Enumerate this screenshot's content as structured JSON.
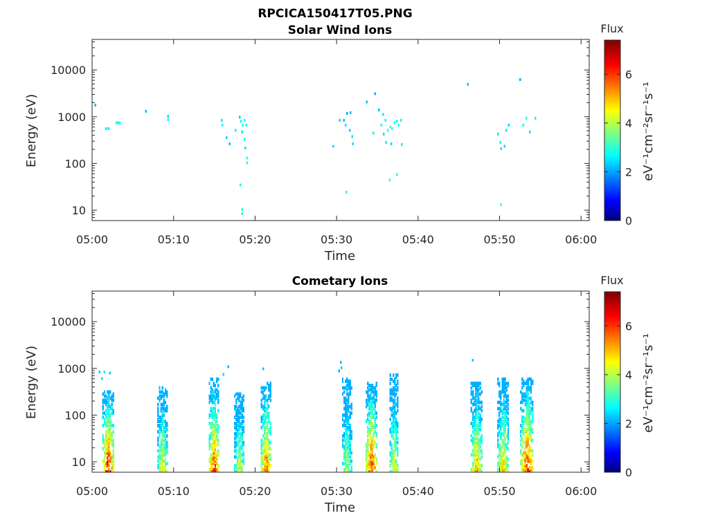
{
  "figure_title": "RPCICA150417T05.PNG",
  "chart_data": [
    {
      "type": "heatmap",
      "title": "Solar Wind Ions",
      "xlabel": "Time",
      "ylabel": "Energy (eV)",
      "y_scale": "log",
      "x_ticks": [
        "05:00",
        "05:10",
        "05:20",
        "05:30",
        "05:40",
        "05:50",
        "06:00"
      ],
      "x_range_minutes": [
        0,
        61
      ],
      "y_ticks": [
        "10",
        "100",
        "1000",
        "10000"
      ],
      "y_range": [
        6,
        45000
      ],
      "colorbar": {
        "label": "Flux",
        "units": "eV⁻¹cm⁻²sr⁻¹s⁻¹",
        "ticks": [
          "0",
          "2",
          "4",
          "6"
        ],
        "range": [
          0,
          7.4
        ],
        "colormap": "jet"
      },
      "points": [
        [
          0.3,
          1900,
          2.2
        ],
        [
          1.6,
          600,
          2.6
        ],
        [
          1.9,
          600,
          2.6
        ],
        [
          2.9,
          800,
          2.9
        ],
        [
          3.1,
          800,
          3.0
        ],
        [
          3.3,
          780,
          2.8
        ],
        [
          6.5,
          1400,
          2.3
        ],
        [
          9.2,
          1100,
          2.5
        ],
        [
          9.2,
          930,
          2.7
        ],
        [
          15.8,
          900,
          2.6
        ],
        [
          15.9,
          700,
          2.9
        ],
        [
          16.4,
          380,
          2.5
        ],
        [
          16.8,
          280,
          2.3
        ],
        [
          17.5,
          550,
          2.7
        ],
        [
          18.0,
          1050,
          2.4
        ],
        [
          18.2,
          850,
          2.7
        ],
        [
          18.4,
          700,
          2.9
        ],
        [
          18.6,
          900,
          2.8
        ],
        [
          18.8,
          700,
          2.9
        ],
        [
          18.3,
          500,
          2.6
        ],
        [
          18.6,
          350,
          2.7
        ],
        [
          18.7,
          230,
          2.6
        ],
        [
          18.9,
          140,
          3.0
        ],
        [
          18.9,
          110,
          2.9
        ],
        [
          18.1,
          37,
          2.9
        ],
        [
          18.3,
          11,
          3.1
        ],
        [
          18.3,
          9,
          3.1
        ],
        [
          29.5,
          250,
          2.6
        ],
        [
          30.3,
          900,
          2.5
        ],
        [
          30.8,
          900,
          2.3
        ],
        [
          31.0,
          700,
          2.6
        ],
        [
          31.2,
          1250,
          2.2
        ],
        [
          31.5,
          550,
          2.4
        ],
        [
          31.8,
          400,
          2.6
        ],
        [
          31.6,
          1300,
          2.3
        ],
        [
          31.9,
          280,
          2.5
        ],
        [
          31.1,
          26,
          3.1
        ],
        [
          33.6,
          2200,
          2.3
        ],
        [
          34.6,
          3300,
          2.2
        ],
        [
          35.1,
          1500,
          2.3
        ],
        [
          35.4,
          700,
          2.8
        ],
        [
          35.6,
          1200,
          2.6
        ],
        [
          35.9,
          900,
          2.7
        ],
        [
          36.2,
          550,
          3.1
        ],
        [
          36.5,
          650,
          3.2
        ],
        [
          36.7,
          600,
          3.0
        ],
        [
          37.0,
          800,
          2.8
        ],
        [
          37.3,
          850,
          2.7
        ],
        [
          37.5,
          700,
          2.9
        ],
        [
          37.8,
          900,
          2.8
        ],
        [
          36.0,
          300,
          2.6
        ],
        [
          36.6,
          280,
          2.5
        ],
        [
          37.9,
          270,
          2.7
        ],
        [
          34.4,
          480,
          2.8
        ],
        [
          35.7,
          450,
          2.5
        ],
        [
          36.4,
          47,
          3.0
        ],
        [
          37.3,
          62,
          2.9
        ],
        [
          46.0,
          5300,
          2.3
        ],
        [
          49.7,
          450,
          2.6
        ],
        [
          50.0,
          300,
          2.7
        ],
        [
          50.1,
          220,
          2.6
        ],
        [
          50.5,
          250,
          2.5
        ],
        [
          50.7,
          550,
          2.6
        ],
        [
          51.0,
          700,
          2.5
        ],
        [
          50.1,
          14,
          3.1
        ],
        [
          52.4,
          6700,
          2.2
        ],
        [
          52.8,
          700,
          2.7
        ],
        [
          53.2,
          1000,
          2.8
        ],
        [
          53.6,
          500,
          2.6
        ],
        [
          54.3,
          1000,
          2.7
        ]
      ]
    },
    {
      "type": "heatmap",
      "title": "Cometary Ions",
      "xlabel": "Time",
      "ylabel": "Energy (eV)",
      "y_scale": "log",
      "x_ticks": [
        "05:00",
        "05:10",
        "05:20",
        "05:30",
        "05:40",
        "05:50",
        "06:00"
      ],
      "x_range_minutes": [
        0,
        61
      ],
      "y_ticks": [
        "10",
        "100",
        "1000",
        "10000"
      ],
      "y_range": [
        6,
        45000
      ],
      "colorbar": {
        "label": "Flux",
        "units": "eV⁻¹cm⁻²sr⁻¹s⁻¹",
        "ticks": [
          "0",
          "2",
          "4",
          "6"
        ],
        "range": [
          0,
          7.4
        ],
        "colormap": "jet"
      },
      "points": [
        [
          0.8,
          900,
          2.4
        ],
        [
          1.1,
          650,
          2.5
        ],
        [
          1.4,
          900,
          2.6
        ],
        [
          2.1,
          850,
          2.4
        ],
        [
          46.6,
          1600,
          2.4
        ],
        [
          16.6,
          1150,
          2.3
        ],
        [
          16.0,
          800,
          2.5
        ],
        [
          20.9,
          1050,
          2.3
        ],
        [
          30.4,
          1450,
          2.3
        ],
        [
          30.5,
          1100,
          2.4
        ],
        [
          30.2,
          950,
          2.2
        ]
      ],
      "bursts": [
        {
          "x": 1.9,
          "span": 1.3,
          "e_top": 350,
          "peak": 7.0
        },
        {
          "x": 8.6,
          "span": 1.2,
          "e_top": 450,
          "peak": 5.0
        },
        {
          "x": 14.9,
          "span": 1.2,
          "e_top": 650,
          "peak": 6.3
        },
        {
          "x": 18.0,
          "span": 1.2,
          "e_top": 330,
          "peak": 4.5
        },
        {
          "x": 21.3,
          "span": 1.2,
          "e_top": 550,
          "peak": 6.1
        },
        {
          "x": 31.2,
          "span": 1.1,
          "e_top": 650,
          "peak": 4.4
        },
        {
          "x": 34.2,
          "span": 1.3,
          "e_top": 550,
          "peak": 6.6
        },
        {
          "x": 37.0,
          "span": 1.0,
          "e_top": 850,
          "peak": 4.8
        },
        {
          "x": 47.1,
          "span": 1.3,
          "e_top": 550,
          "peak": 5.6
        },
        {
          "x": 50.4,
          "span": 1.4,
          "e_top": 700,
          "peak": 5.2
        },
        {
          "x": 53.3,
          "span": 1.6,
          "e_top": 650,
          "peak": 6.6
        }
      ]
    }
  ]
}
